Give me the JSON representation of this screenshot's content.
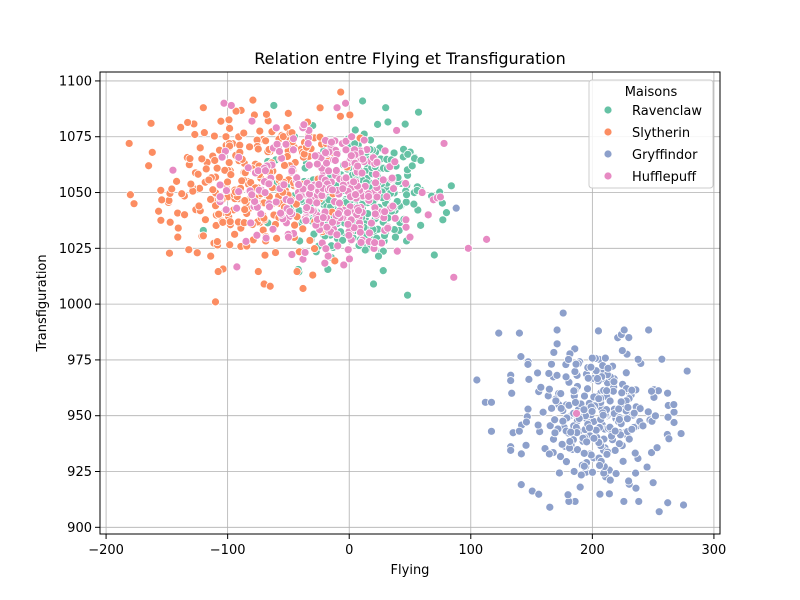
{
  "chart_data": {
    "type": "scatter",
    "title": "Relation entre Flying et Transfiguration",
    "xlabel": "Flying",
    "ylabel": "Transfiguration",
    "xlim": [
      -205,
      305
    ],
    "ylim": [
      897,
      1104
    ],
    "xticks": [
      -200,
      -100,
      0,
      100,
      200,
      300
    ],
    "yticks": [
      900,
      925,
      950,
      975,
      1000,
      1025,
      1050,
      1075,
      1100
    ],
    "grid": true,
    "legend": {
      "title": "Maisons",
      "placement": "top-right"
    },
    "series": [
      {
        "name": "Ravenclaw",
        "color": "#66c2a5",
        "cluster": {
          "cx": 5,
          "cy": 1048,
          "sx": 30,
          "sy": 14,
          "count": 320
        },
        "points": [
          [
            -62,
            1089
          ],
          [
            -120,
            1033
          ],
          [
            11,
            1091
          ],
          [
            30,
            1088
          ],
          [
            57,
            1086
          ],
          [
            48,
            1004
          ],
          [
            45,
            1038
          ],
          [
            80,
            1041
          ],
          [
            84,
            1053
          ],
          [
            70,
            1022
          ],
          [
            20,
            1009
          ],
          [
            28,
            1015
          ],
          [
            38,
            1030
          ],
          [
            -45,
            1075
          ],
          [
            -30,
            1080
          ],
          [
            5,
            1078
          ],
          [
            -10,
            1068
          ]
        ]
      },
      {
        "name": "Slytherin",
        "color": "#fc8d62",
        "cluster": {
          "cx": -75,
          "cy": 1053,
          "sx": 35,
          "sy": 16,
          "count": 300
        },
        "points": [
          [
            -181,
            1072
          ],
          [
            -180,
            1049
          ],
          [
            -177,
            1045
          ],
          [
            -163,
            1081
          ],
          [
            -165,
            1062
          ],
          [
            -162,
            1068
          ],
          [
            -155,
            1051
          ],
          [
            -141,
            1030
          ],
          [
            -142,
            1055
          ],
          [
            -125,
            1023
          ],
          [
            -120,
            1088
          ],
          [
            -110,
            1001
          ],
          [
            -70,
            1009
          ],
          [
            -65,
            1008
          ],
          [
            -38,
            1007
          ],
          [
            -7,
            1095
          ],
          [
            -30,
            1013
          ],
          [
            -75,
            1044
          ],
          [
            -90,
            1068
          ],
          [
            -100,
            1041
          ]
        ]
      },
      {
        "name": "Gryffindor",
        "color": "#8da0cb",
        "cluster": {
          "cx": 200,
          "cy": 950,
          "sx": 28,
          "sy": 16,
          "count": 300
        },
        "points": [
          [
            105,
            966
          ],
          [
            112,
            956
          ],
          [
            117,
            956
          ],
          [
            123,
            987
          ],
          [
            140,
            987
          ],
          [
            147,
            973
          ],
          [
            165,
            909
          ],
          [
            176,
            996
          ],
          [
            205,
            988
          ],
          [
            245,
            927
          ],
          [
            250,
            920
          ],
          [
            255,
            907
          ],
          [
            262,
            911
          ],
          [
            278,
            970
          ],
          [
            275,
            910
          ],
          [
            273,
            942
          ],
          [
            267,
            955
          ],
          [
            117,
            943
          ],
          [
            88,
            1043
          ],
          [
            185,
            925
          ],
          [
            190,
            918
          ],
          [
            214,
            915
          ],
          [
            230,
            985
          ]
        ]
      },
      {
        "name": "Hufflepuff",
        "color": "#e78ac3",
        "cluster": {
          "cx": -15,
          "cy": 1050,
          "sx": 38,
          "sy": 14,
          "count": 300
        },
        "points": [
          [
            -145,
            1060
          ],
          [
            -103,
            1090
          ],
          [
            -97,
            1089
          ],
          [
            113,
            1029
          ],
          [
            98,
            1025
          ],
          [
            86,
            1012
          ],
          [
            78,
            1072
          ],
          [
            75,
            1048
          ],
          [
            60,
            1050
          ],
          [
            -10,
            1088
          ],
          [
            -3,
            1090
          ],
          [
            2,
            1075
          ],
          [
            50,
            1030
          ],
          [
            65,
            1040
          ],
          [
            -50,
            1030
          ],
          [
            -80,
            1082
          ],
          [
            187,
            951
          ]
        ]
      }
    ]
  }
}
